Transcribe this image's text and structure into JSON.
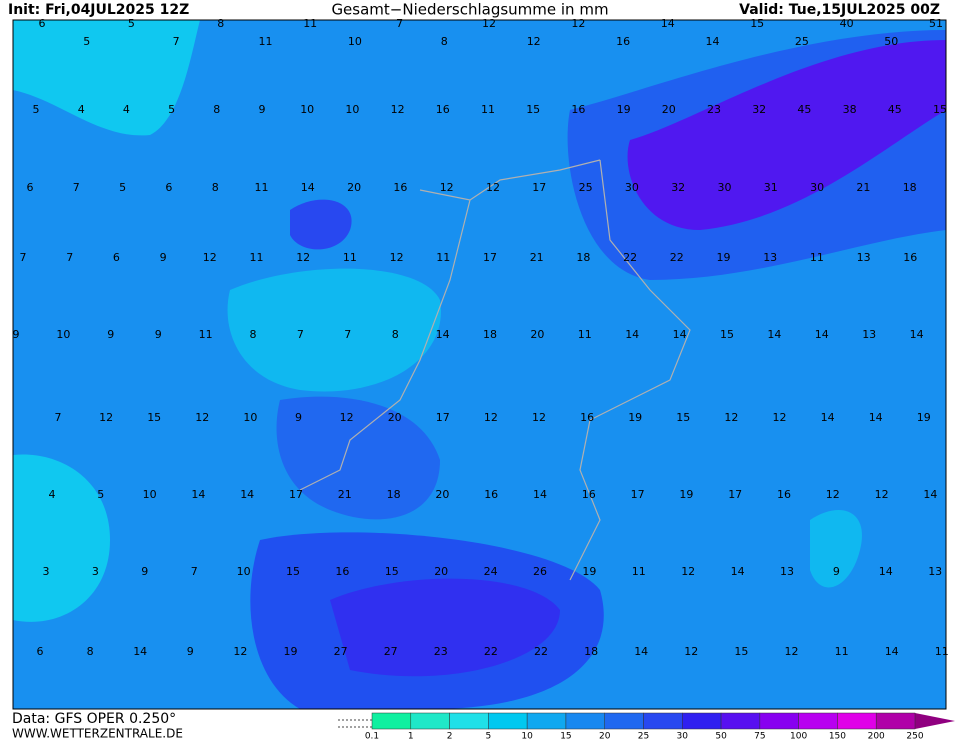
{
  "header": {
    "init": "Init: Fri,04JUL2025 12Z",
    "title": "Gesamt−Niederschlagsumme in mm",
    "valid": "Valid: Tue,15JUL2025 00Z"
  },
  "map": {
    "rows": [
      [
        6,
        5,
        5,
        7,
        8,
        11,
        11,
        10,
        7,
        8,
        12,
        12,
        12,
        16,
        14,
        14,
        15,
        25,
        40,
        50,
        51
      ],
      [
        5,
        4,
        4,
        5,
        8,
        9,
        10,
        10,
        12,
        16,
        11,
        15,
        16,
        19,
        20,
        23,
        32,
        45,
        38,
        45,
        15
      ],
      [
        6,
        7,
        5,
        6,
        8,
        11,
        14,
        20,
        16,
        12,
        12,
        17,
        25,
        30,
        32,
        30,
        31,
        30,
        21,
        18
      ],
      [
        7,
        7,
        6,
        9,
        12,
        11,
        12,
        11,
        12,
        11,
        17,
        21,
        18,
        22,
        22,
        19,
        13,
        11,
        13,
        16
      ],
      [
        9,
        10,
        9,
        9,
        11,
        8,
        7,
        7,
        8,
        14,
        18,
        20,
        11,
        14,
        14,
        15,
        14,
        14,
        13,
        14
      ],
      [
        7,
        12,
        15,
        12,
        10,
        9,
        12,
        20,
        17,
        12,
        12,
        16,
        19,
        15,
        12,
        12,
        14,
        14,
        19
      ],
      [
        4,
        5,
        10,
        14,
        14,
        17,
        21,
        18,
        20,
        16,
        14,
        16,
        17,
        19,
        17,
        16,
        12,
        12,
        14
      ],
      [
        3,
        3,
        9,
        7,
        10,
        15,
        16,
        15,
        20,
        24,
        26,
        19,
        11,
        12,
        14,
        13,
        9,
        14,
        13
      ],
      [
        6,
        8,
        14,
        9,
        12,
        19,
        27,
        27,
        23,
        22,
        22,
        18,
        14,
        12,
        15,
        12,
        11,
        14,
        11
      ]
    ]
  },
  "footer": {
    "data": "Data: GFS OPER 0.250°",
    "site": "WWW.WETTERZENTRALE.DE"
  },
  "legend": {
    "labels": [
      0.1,
      1,
      2,
      5,
      10,
      15,
      20,
      25,
      30,
      50,
      75,
      100,
      150,
      200,
      250
    ],
    "colors": [
      "#10f0a0",
      "#20e8c8",
      "#20e0e8",
      "#00c8f0",
      "#10a8f0",
      "#1888f0",
      "#2068f0",
      "#2848f0",
      "#3020f0",
      "#5810f0",
      "#8800f0",
      "#b800f0",
      "#e000e8",
      "#b000a8"
    ]
  }
}
